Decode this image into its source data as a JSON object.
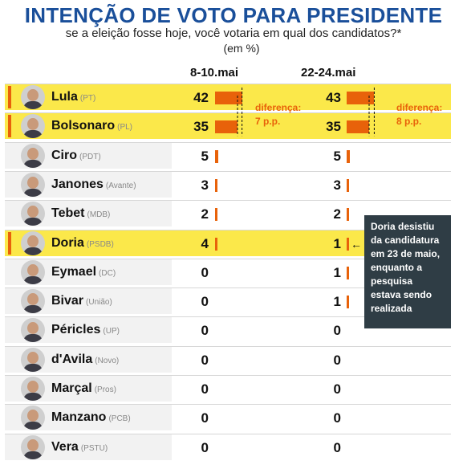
{
  "chart_data": {
    "type": "bar",
    "title": "INTENÇÃO DE VOTO PARA PRESIDENTE",
    "subtitle": "se a eleição fosse hoje, você votaria em qual dos candidatos?*",
    "unit": "(em %)",
    "periods": [
      "8-10.mai",
      "22-24.mai"
    ],
    "categories": [
      "Lula",
      "Bolsonaro",
      "Ciro",
      "Janones",
      "Tebet",
      "Doria",
      "Eymael",
      "Bivar",
      "Péricles",
      "d'Avila",
      "Marçal",
      "Manzano",
      "Vera"
    ],
    "parties": [
      "(PT)",
      "(PL)",
      "(PDT)",
      "(Avante)",
      "(MDB)",
      "(PSDB)",
      "(DC)",
      "(União)",
      "(UP)",
      "(Novo)",
      "(Pros)",
      "(PCB)",
      "(PSTU)"
    ],
    "series": [
      {
        "name": "8-10.mai",
        "values": [
          42,
          35,
          5,
          3,
          2,
          4,
          0,
          0,
          0,
          0,
          0,
          0,
          0
        ]
      },
      {
        "name": "22-24.mai",
        "values": [
          43,
          35,
          5,
          3,
          2,
          1,
          1,
          1,
          0,
          0,
          0,
          0,
          0
        ]
      }
    ],
    "highlighted": [
      "Lula",
      "Bolsonaro",
      "Doria"
    ],
    "annotations": {
      "diff_1_label": "diferença:",
      "diff_1_value": "7 p.p.",
      "diff_2_label": "diferença:",
      "diff_2_value": "8 p.p.",
      "doria_note": "Doria desistiu da candidatura em 23 de maio, enquanto a pesquisa estava sendo realizada"
    },
    "colors": {
      "title": "#1a4f9a",
      "bar": "#e8620a",
      "highlight": "#fbe84a",
      "note_bg": "#2f3d45"
    }
  }
}
